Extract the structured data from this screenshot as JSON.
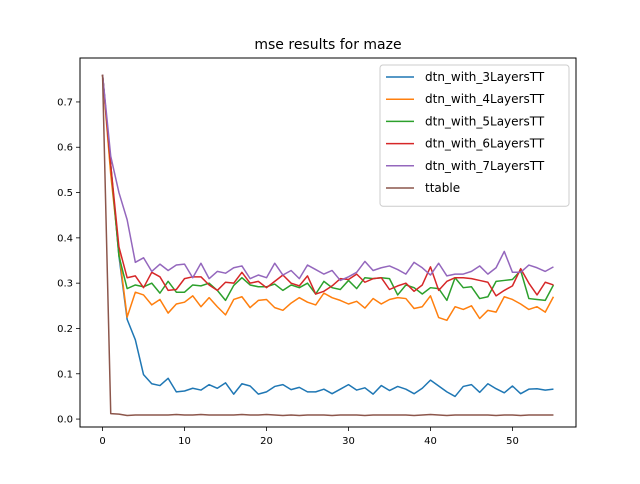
{
  "chart_data": {
    "type": "line",
    "title": "mse results for maze",
    "xlabel": "",
    "ylabel": "",
    "xlim": [
      -2.75,
      57.75
    ],
    "ylim": [
      -0.0175,
      0.797
    ],
    "x_ticks": [
      0,
      10,
      20,
      30,
      40,
      50
    ],
    "x_tick_labels": [
      "0",
      "10",
      "20",
      "30",
      "40",
      "50"
    ],
    "y_ticks": [
      0.0,
      0.1,
      0.2,
      0.3,
      0.4,
      0.5,
      0.6,
      0.7
    ],
    "y_tick_labels": [
      "0.0",
      "0.1",
      "0.2",
      "0.3",
      "0.4",
      "0.5",
      "0.6",
      "0.7"
    ],
    "grid": false,
    "legend_position": "upper right",
    "x": [
      0,
      1,
      2,
      3,
      4,
      5,
      6,
      7,
      8,
      9,
      10,
      11,
      12,
      13,
      14,
      15,
      16,
      17,
      18,
      19,
      20,
      21,
      22,
      23,
      24,
      25,
      26,
      27,
      28,
      29,
      30,
      31,
      32,
      33,
      34,
      35,
      36,
      37,
      38,
      39,
      40,
      41,
      42,
      43,
      44,
      45,
      46,
      47,
      48,
      49,
      50,
      51,
      52,
      53,
      54,
      55
    ],
    "series": [
      {
        "name": "dtn_with_3LayersTT",
        "color": "#1f77b4",
        "values": [
          0.76,
          0.56,
          0.36,
          0.22,
          0.175,
          0.098,
          0.078,
          0.074,
          0.09,
          0.06,
          0.062,
          0.068,
          0.064,
          0.076,
          0.068,
          0.08,
          0.055,
          0.078,
          0.073,
          0.055,
          0.06,
          0.072,
          0.076,
          0.065,
          0.07,
          0.06,
          0.06,
          0.066,
          0.056,
          0.066,
          0.076,
          0.064,
          0.069,
          0.055,
          0.074,
          0.063,
          0.072,
          0.066,
          0.056,
          0.068,
          0.086,
          0.073,
          0.06,
          0.05,
          0.072,
          0.076,
          0.059,
          0.078,
          0.067,
          0.058,
          0.073,
          0.056,
          0.066,
          0.067,
          0.064,
          0.066
        ]
      },
      {
        "name": "dtn_with_4LayersTT",
        "color": "#ff7f0e",
        "values": [
          0.76,
          0.54,
          0.37,
          0.225,
          0.28,
          0.274,
          0.252,
          0.264,
          0.234,
          0.254,
          0.258,
          0.272,
          0.248,
          0.268,
          0.248,
          0.23,
          0.264,
          0.27,
          0.246,
          0.262,
          0.264,
          0.246,
          0.24,
          0.256,
          0.268,
          0.258,
          0.252,
          0.278,
          0.268,
          0.262,
          0.254,
          0.26,
          0.245,
          0.266,
          0.254,
          0.264,
          0.268,
          0.266,
          0.244,
          0.248,
          0.272,
          0.224,
          0.218,
          0.248,
          0.242,
          0.25,
          0.222,
          0.24,
          0.236,
          0.27,
          0.264,
          0.254,
          0.242,
          0.248,
          0.236,
          0.27
        ]
      },
      {
        "name": "dtn_with_5LayersTT",
        "color": "#2ca02c",
        "values": [
          0.76,
          0.56,
          0.36,
          0.288,
          0.296,
          0.292,
          0.3,
          0.278,
          0.304,
          0.28,
          0.28,
          0.296,
          0.294,
          0.3,
          0.284,
          0.262,
          0.295,
          0.312,
          0.296,
          0.292,
          0.292,
          0.298,
          0.284,
          0.296,
          0.29,
          0.3,
          0.276,
          0.304,
          0.29,
          0.286,
          0.306,
          0.288,
          0.312,
          0.31,
          0.312,
          0.31,
          0.274,
          0.296,
          0.29,
          0.276,
          0.29,
          0.288,
          0.262,
          0.312,
          0.29,
          0.292,
          0.266,
          0.27,
          0.304,
          0.306,
          0.308,
          0.328,
          0.266,
          0.264,
          0.262,
          0.296
        ]
      },
      {
        "name": "dtn_with_6LayersTT",
        "color": "#d62728",
        "values": [
          0.76,
          0.56,
          0.38,
          0.312,
          0.316,
          0.29,
          0.324,
          0.314,
          0.284,
          0.286,
          0.31,
          0.314,
          0.314,
          0.296,
          0.284,
          0.302,
          0.3,
          0.324,
          0.3,
          0.304,
          0.29,
          0.304,
          0.318,
          0.3,
          0.294,
          0.316,
          0.276,
          0.282,
          0.294,
          0.31,
          0.308,
          0.32,
          0.302,
          0.31,
          0.312,
          0.286,
          0.294,
          0.3,
          0.282,
          0.296,
          0.336,
          0.284,
          0.304,
          0.312,
          0.312,
          0.31,
          0.306,
          0.302,
          0.272,
          0.284,
          0.294,
          0.332,
          0.3,
          0.274,
          0.302,
          0.296
        ]
      },
      {
        "name": "dtn_with_7LayersTT",
        "color": "#9467bd",
        "values": [
          0.76,
          0.58,
          0.5,
          0.44,
          0.346,
          0.356,
          0.326,
          0.342,
          0.328,
          0.34,
          0.342,
          0.312,
          0.344,
          0.31,
          0.326,
          0.322,
          0.334,
          0.338,
          0.31,
          0.318,
          0.312,
          0.344,
          0.318,
          0.328,
          0.31,
          0.34,
          0.33,
          0.32,
          0.328,
          0.306,
          0.314,
          0.324,
          0.348,
          0.328,
          0.334,
          0.338,
          0.33,
          0.32,
          0.346,
          0.334,
          0.318,
          0.344,
          0.316,
          0.32,
          0.32,
          0.326,
          0.338,
          0.32,
          0.334,
          0.37,
          0.324,
          0.324,
          0.34,
          0.334,
          0.326,
          0.336
        ]
      },
      {
        "name": "ttable",
        "color": "#8c564b",
        "values": [
          0.76,
          0.012,
          0.011,
          0.008,
          0.009,
          0.009,
          0.009,
          0.009,
          0.009,
          0.01,
          0.009,
          0.009,
          0.01,
          0.009,
          0.009,
          0.009,
          0.009,
          0.01,
          0.009,
          0.009,
          0.01,
          0.009,
          0.008,
          0.009,
          0.008,
          0.009,
          0.009,
          0.009,
          0.008,
          0.009,
          0.009,
          0.009,
          0.008,
          0.009,
          0.009,
          0.009,
          0.009,
          0.009,
          0.008,
          0.009,
          0.01,
          0.009,
          0.008,
          0.009,
          0.009,
          0.009,
          0.009,
          0.009,
          0.008,
          0.009,
          0.009,
          0.008,
          0.009,
          0.009,
          0.009,
          0.009
        ]
      }
    ]
  }
}
